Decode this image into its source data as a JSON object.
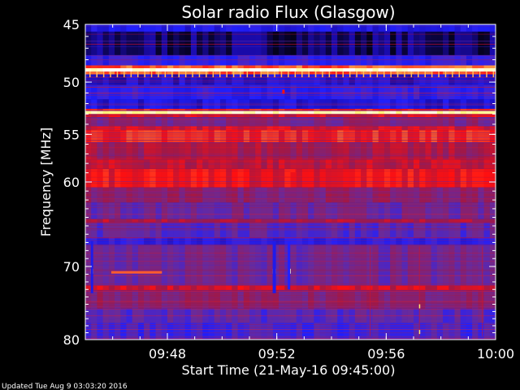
{
  "chart_data": {
    "type": "heatmap",
    "title": "Solar radio Flux (Glasgow)",
    "xlabel": "Start Time (21-May-16 09:45:00)",
    "ylabel": "Frequency [MHz]",
    "x_start_min": 0,
    "x_end_min": 15,
    "ylim": [
      45,
      80
    ],
    "y_scale": "log",
    "y_inverted": true,
    "x_ticks": [
      {
        "minutes": 3,
        "label": "09:48"
      },
      {
        "minutes": 7,
        "label": "09:52"
      },
      {
        "minutes": 11,
        "label": "09:56"
      },
      {
        "minutes": 15,
        "label": "10:00"
      }
    ],
    "y_ticks": [
      {
        "mhz": 45,
        "label": "45"
      },
      {
        "mhz": 50,
        "label": "50"
      },
      {
        "mhz": 55,
        "label": "55"
      },
      {
        "mhz": 60,
        "label": "60"
      },
      {
        "mhz": 70,
        "label": "70"
      },
      {
        "mhz": 80,
        "label": "80"
      }
    ],
    "colormap": [
      "#000000",
      "#1a0aa8",
      "#2020ff",
      "#6a2a9a",
      "#a01848",
      "#ff1010",
      "#ff9040",
      "#ffff80",
      "#ffffff"
    ],
    "bands": [
      {
        "f_from": 45.0,
        "f_to": 45.6,
        "level": 0.22
      },
      {
        "f_from": 45.6,
        "f_to": 47.6,
        "level": 0.08
      },
      {
        "f_from": 47.6,
        "f_to": 48.5,
        "level": 0.26
      },
      {
        "f_from": 48.5,
        "f_to": 48.75,
        "level": 0.7
      },
      {
        "f_from": 48.75,
        "f_to": 49.05,
        "level": 0.97
      },
      {
        "f_from": 49.05,
        "f_to": 49.3,
        "level": 0.7
      },
      {
        "f_from": 49.3,
        "f_to": 50.3,
        "level": 0.18
      },
      {
        "f_from": 50.3,
        "f_to": 51.6,
        "level": 0.26
      },
      {
        "f_from": 51.6,
        "f_to": 52.5,
        "level": 0.2
      },
      {
        "f_from": 52.5,
        "f_to": 52.7,
        "level": 0.62
      },
      {
        "f_from": 52.7,
        "f_to": 53.0,
        "level": 0.92
      },
      {
        "f_from": 53.0,
        "f_to": 53.3,
        "level": 0.58
      },
      {
        "f_from": 53.3,
        "f_to": 54.2,
        "level": 0.42
      },
      {
        "f_from": 54.2,
        "f_to": 54.6,
        "level": 0.58
      },
      {
        "f_from": 54.6,
        "f_to": 55.8,
        "level": 0.64
      },
      {
        "f_from": 55.8,
        "f_to": 57.6,
        "level": 0.5
      },
      {
        "f_from": 57.6,
        "f_to": 58.6,
        "level": 0.54
      },
      {
        "f_from": 58.6,
        "f_to": 60.6,
        "level": 0.6
      },
      {
        "f_from": 60.6,
        "f_to": 62.3,
        "level": 0.45
      },
      {
        "f_from": 62.3,
        "f_to": 64.2,
        "level": 0.38
      },
      {
        "f_from": 64.2,
        "f_to": 64.6,
        "level": 0.52
      },
      {
        "f_from": 64.6,
        "f_to": 66.4,
        "level": 0.34
      },
      {
        "f_from": 66.4,
        "f_to": 67.3,
        "level": 0.24
      },
      {
        "f_from": 67.3,
        "f_to": 72.5,
        "level": 0.38
      },
      {
        "f_from": 72.5,
        "f_to": 73.1,
        "level": 0.56
      },
      {
        "f_from": 73.1,
        "f_to": 75.6,
        "level": 0.44
      },
      {
        "f_from": 75.6,
        "f_to": 77.6,
        "level": 0.34
      },
      {
        "f_from": 77.6,
        "f_to": 80.0,
        "level": 0.3
      }
    ],
    "footer": "Updated Tue Aug  9 03:03:20 2016"
  }
}
